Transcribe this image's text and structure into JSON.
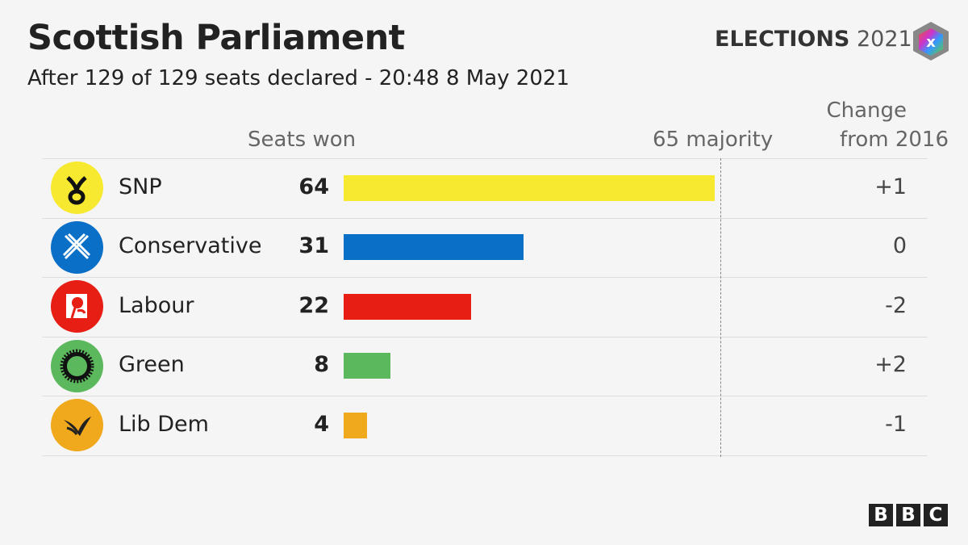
{
  "header": {
    "title": "Scottish Parliament",
    "subtitle": "After 129 of 129 seats declared - 20:48  8 May 2021",
    "brand_bold": "ELECTIONS",
    "brand_year": "2021",
    "brand_logo_letter": "x"
  },
  "columns": {
    "seats": "Seats won",
    "majority": "65 majority",
    "change_line1": "Change",
    "change_line2": "from 2016"
  },
  "chart_data": {
    "type": "bar",
    "orientation": "horizontal",
    "title": "Scottish Parliament",
    "categories": [
      "SNP",
      "Conservative",
      "Labour",
      "Green",
      "Lib Dem"
    ],
    "values": [
      64,
      31,
      22,
      8,
      4
    ],
    "change_from_2016": [
      "+1",
      "0",
      "-2",
      "+2",
      "-1"
    ],
    "colors": [
      "#f7e930",
      "#0a6fc7",
      "#e61e14",
      "#5cb85c",
      "#f0a81c"
    ],
    "icons": [
      "snp-logo-icon",
      "conservative-saltire-icon",
      "labour-rose-icon",
      "green-sun-icon",
      "libdem-bird-icon"
    ],
    "majority_line": 65,
    "xlim": [
      0,
      64
    ],
    "grid": false
  },
  "footer": {
    "logo": "BBC"
  }
}
